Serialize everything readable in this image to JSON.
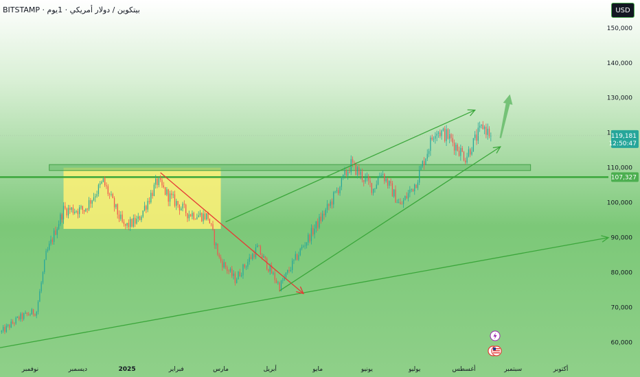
{
  "header": {
    "symbol": "BITSTAMP",
    "description": "بيتكوين / دولار أمريكي · 1يوم",
    "currency": "USD"
  },
  "colors": {
    "background_top": "#ffffff",
    "background_bottom": "#7cc878",
    "up_candle": "#26a69a",
    "down_candle": "#ef5350",
    "trendline": "#3aa63a",
    "downtrend_line": "#e53935",
    "horizontal_level": "#3aa63a",
    "range_box": "#fff176",
    "price_tag": "#26a69a",
    "level_tag": "#4caf50"
  },
  "chart_data": {
    "type": "candlestick",
    "y_axis": {
      "ticks": [
        150000,
        140000,
        130000,
        120000,
        110000,
        100000,
        90000,
        80000,
        70000,
        60000
      ],
      "tick_labels": [
        "150,000",
        "140,000",
        "130,000",
        "120,000",
        "110,000",
        "100,000",
        "90,000",
        "80,000",
        "70,000",
        "60,000"
      ],
      "range": [
        56000,
        158000
      ]
    },
    "x_axis": {
      "tick_labels": [
        {
          "label": "نوفمبر",
          "date": "2024-11-01"
        },
        {
          "label": "ديسمبر",
          "date": "2024-12-01"
        },
        {
          "label": "2025",
          "date": "2025-01-01",
          "bold": true
        },
        {
          "label": "فبراير",
          "date": "2025-02-01"
        },
        {
          "label": "مارس",
          "date": "2025-03-01"
        },
        {
          "label": "أبريل",
          "date": "2025-04-01"
        },
        {
          "label": "مايو",
          "date": "2025-05-01"
        },
        {
          "label": "يونيو",
          "date": "2025-06-01"
        },
        {
          "label": "يوليو",
          "date": "2025-07-01"
        },
        {
          "label": "أغسطس",
          "date": "2025-08-01"
        },
        {
          "label": "سبتمبر",
          "date": "2025-09-01"
        },
        {
          "label": "أكتوبر",
          "date": "2025-10-01"
        }
      ],
      "range": [
        "2024-10-13",
        "2025-10-31"
      ]
    },
    "price_path": [
      [
        "2024-10-14",
        63000
      ],
      [
        "2024-10-25",
        67000
      ],
      [
        "2024-11-05",
        69000
      ],
      [
        "2024-11-11",
        85000
      ],
      [
        "2024-11-22",
        98000
      ],
      [
        "2024-12-05",
        98000
      ],
      [
        "2024-12-17",
        106000
      ],
      [
        "2024-12-30",
        93000
      ],
      [
        "2025-01-08",
        95000
      ],
      [
        "2025-01-20",
        106000
      ],
      [
        "2025-01-27",
        102000
      ],
      [
        "2025-02-08",
        97000
      ],
      [
        "2025-02-21",
        96000
      ],
      [
        "2025-02-28",
        84000
      ],
      [
        "2025-03-10",
        78000
      ],
      [
        "2025-03-24",
        87000
      ],
      [
        "2025-04-07",
        76000
      ],
      [
        "2025-04-21",
        87000
      ],
      [
        "2025-05-08",
        99000
      ],
      [
        "2025-05-22",
        111000
      ],
      [
        "2025-06-05",
        104000
      ],
      [
        "2025-06-10",
        109000
      ],
      [
        "2025-06-22",
        99000
      ],
      [
        "2025-07-02",
        106000
      ],
      [
        "2025-07-10",
        116000
      ],
      [
        "2025-07-14",
        121000
      ],
      [
        "2025-07-22",
        119000
      ],
      [
        "2025-08-02",
        113000
      ],
      [
        "2025-08-13",
        122000
      ],
      [
        "2025-08-18",
        119181
      ]
    ],
    "current_price": {
      "value": 119181,
      "label": "119,181",
      "countdown": "12:50:47"
    },
    "horizontal_level": {
      "value": 107327,
      "label": "107,327"
    },
    "annotations": {
      "range_box": {
        "x0": "2024-11-22",
        "x1": "2025-03-01",
        "y0": 92500,
        "y1": 110000
      },
      "resistance_band": {
        "x0": "2024-11-13",
        "x1": "2025-09-12",
        "y0": 109200,
        "y1": 110900
      },
      "long_trendline": {
        "x0": "2024-10-13",
        "y0": 58500,
        "x1": "2025-10-31",
        "y1": 90000
      },
      "downtrend": {
        "x0": "2025-01-22",
        "y0": 108600,
        "x1": "2025-04-22",
        "y1": 74000
      },
      "channel_upper": {
        "x0": "2025-03-04",
        "y0": 94500,
        "x1": "2025-08-08",
        "y1": 126500
      },
      "channel_lower": {
        "x0": "2025-04-07",
        "y0": 74800,
        "x1": "2025-08-24",
        "y1": 116000
      },
      "projection": {
        "x0": "2025-08-24",
        "y0": 118500,
        "x1": "2025-08-30",
        "y1": 131000
      }
    }
  }
}
